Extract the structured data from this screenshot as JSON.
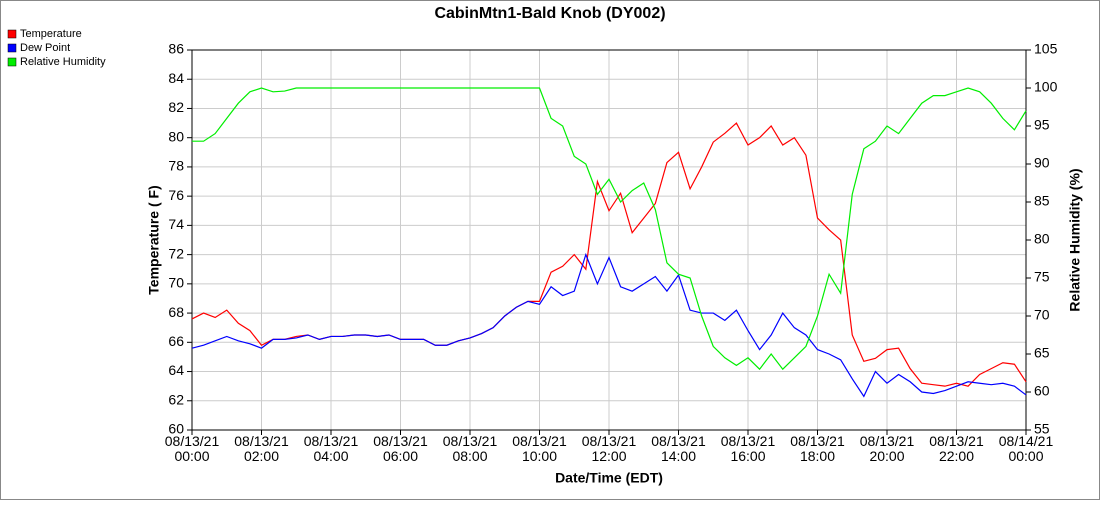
{
  "chart_data": {
    "type": "line",
    "title": "CabinMtn1-Bald Knob (DY002)",
    "x_label": "Date/Time (EDT)",
    "y_label": "Temperature ( F)",
    "y2_label": "Relative Humidity (%)",
    "x": [
      0,
      20,
      40,
      60,
      80,
      100,
      120,
      140,
      160,
      180,
      200,
      220,
      240,
      260,
      280,
      300,
      320,
      340,
      360,
      380,
      400,
      420,
      440,
      460,
      480,
      500,
      520,
      540,
      560,
      580,
      600,
      620,
      640,
      660,
      680,
      700,
      720,
      740,
      760,
      780,
      800,
      820,
      840,
      860,
      880,
      900,
      920,
      940,
      960,
      980,
      1000,
      1020,
      1040,
      1060,
      1080,
      1100,
      1120,
      1140,
      1160,
      1180,
      1200,
      1220,
      1240,
      1260,
      1280,
      1300,
      1320,
      1340,
      1360,
      1380,
      1400,
      1420,
      1440
    ],
    "xlim": [
      0,
      1440
    ],
    "xticks": [
      {
        "value": 0,
        "label": "08/13/21\n00:00"
      },
      {
        "value": 120,
        "label": "08/13/21\n02:00"
      },
      {
        "value": 240,
        "label": "08/13/21\n04:00"
      },
      {
        "value": 360,
        "label": "08/13/21\n06:00"
      },
      {
        "value": 480,
        "label": "08/13/21\n08:00"
      },
      {
        "value": 600,
        "label": "08/13/21\n10:00"
      },
      {
        "value": 720,
        "label": "08/13/21\n12:00"
      },
      {
        "value": 840,
        "label": "08/13/21\n14:00"
      },
      {
        "value": 960,
        "label": "08/13/21\n16:00"
      },
      {
        "value": 1080,
        "label": "08/13/21\n18:00"
      },
      {
        "value": 1200,
        "label": "08/13/21\n20:00"
      },
      {
        "value": 1320,
        "label": "08/13/21\n22:00"
      },
      {
        "value": 1440,
        "label": "08/14/21\n00:00"
      }
    ],
    "ylim": [
      60,
      86
    ],
    "yticks": [
      60,
      62,
      64,
      66,
      68,
      70,
      72,
      74,
      76,
      78,
      80,
      82,
      84,
      86
    ],
    "y2lim": [
      55,
      105
    ],
    "y2ticks": [
      55,
      60,
      65,
      70,
      75,
      80,
      85,
      90,
      95,
      100,
      105
    ],
    "grid": true,
    "legend": "top-left",
    "series": [
      {
        "name": "Temperature",
        "color": "#ff0000",
        "values": [
          67.6,
          68,
          67.7,
          68.2,
          67.3,
          66.8,
          65.8,
          66.2,
          66.2,
          66.4,
          66.5,
          66.2,
          66.4,
          66.4,
          66.5,
          66.5,
          66.4,
          66.5,
          66.2,
          66.2,
          66.2,
          65.8,
          65.8,
          66.1,
          66.3,
          66.6,
          67,
          67.8,
          68.4,
          68.8,
          68.8,
          70.8,
          71.2,
          72,
          71,
          77,
          75,
          76.2,
          73.5,
          74.5,
          75.5,
          78.3,
          79,
          76.5,
          78,
          79.7,
          80.3,
          81,
          79.5,
          80,
          80.8,
          79.5,
          80,
          78.8,
          74.5,
          73.7,
          73,
          66.5,
          64.7,
          64.9,
          65.5,
          65.6,
          64.2,
          63.2,
          63.1,
          63,
          63.2,
          63,
          63.8,
          64.2,
          64.6,
          64.5,
          63.3
        ]
      },
      {
        "name": "Dew Point",
        "color": "#0000ff",
        "values": [
          65.6,
          65.8,
          66.1,
          66.4,
          66.1,
          65.9,
          65.6,
          66.2,
          66.2,
          66.3,
          66.5,
          66.2,
          66.4,
          66.4,
          66.5,
          66.5,
          66.4,
          66.5,
          66.2,
          66.2,
          66.2,
          65.8,
          65.8,
          66.1,
          66.3,
          66.6,
          67,
          67.8,
          68.4,
          68.8,
          68.6,
          69.8,
          69.2,
          69.5,
          72,
          70,
          71.8,
          69.8,
          69.5,
          70,
          70.5,
          69.5,
          70.6,
          68.2,
          68,
          68,
          67.5,
          68.2,
          66.8,
          65.5,
          66.5,
          68,
          67,
          66.5,
          65.5,
          65.2,
          64.8,
          63.5,
          62.3,
          64,
          63.2,
          63.8,
          63.3,
          62.6,
          62.5,
          62.7,
          63,
          63.3,
          63.2,
          63.1,
          63.2,
          63,
          62.4
        ]
      },
      {
        "name": "Relative Humidity",
        "color": "#00ee00",
        "axis": "y2",
        "values": [
          93,
          93,
          94,
          96,
          98,
          99.5,
          100,
          99.5,
          99.6,
          100,
          100,
          100,
          100,
          100,
          100,
          100,
          100,
          100,
          100,
          100,
          100,
          100,
          100,
          100,
          100,
          100,
          100,
          100,
          100,
          100,
          100,
          96,
          95,
          91,
          90,
          86,
          88,
          85,
          86.5,
          87.5,
          84,
          77,
          75.5,
          75,
          70,
          66,
          64.5,
          63.5,
          64.5,
          63,
          65,
          63,
          64.5,
          66,
          70,
          75.5,
          73,
          86,
          92,
          93,
          95,
          94,
          96,
          98,
          99,
          99,
          99.5,
          100,
          99.5,
          98,
          96,
          94.5,
          97
        ]
      }
    ]
  }
}
